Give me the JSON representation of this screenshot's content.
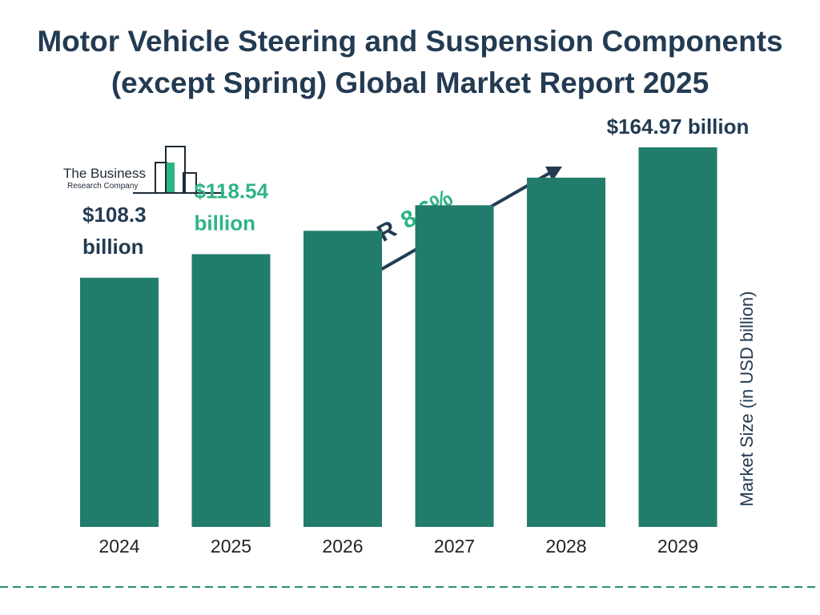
{
  "page": {
    "title_line1": "Motor Vehicle Steering and Suspension Components",
    "title_line2": "(except Spring) Global Market Report 2025"
  },
  "logo": {
    "line1": "The Business",
    "line2": "Research Company",
    "icon": "bar-building-logo-icon"
  },
  "cagr": {
    "label": "CAGR",
    "value": "8.6%",
    "icon": "arrow-up-right-icon"
  },
  "colors": {
    "bar": "#217c6c",
    "title": "#233b52",
    "accent": "#2eb485",
    "dark_label": "#233b52",
    "divider": "#2a8f7a"
  },
  "chart_data": {
    "type": "bar",
    "categories": [
      "2024",
      "2025",
      "2026",
      "2027",
      "2028",
      "2029"
    ],
    "values": [
      108.3,
      118.54,
      128.7,
      139.8,
      151.8,
      164.97
    ],
    "ylabel": "Market Size (in USD billion)",
    "grid": false,
    "data_labels": [
      {
        "index": 0,
        "line1": "$108.3",
        "line2": "billion",
        "color": "#233b52"
      },
      {
        "index": 1,
        "line1": "$118.54",
        "line2": "billion",
        "color": "#2eb485"
      },
      {
        "index": 5,
        "line1": "$164.97 billion",
        "line2": "",
        "color": "#233b52"
      }
    ]
  }
}
